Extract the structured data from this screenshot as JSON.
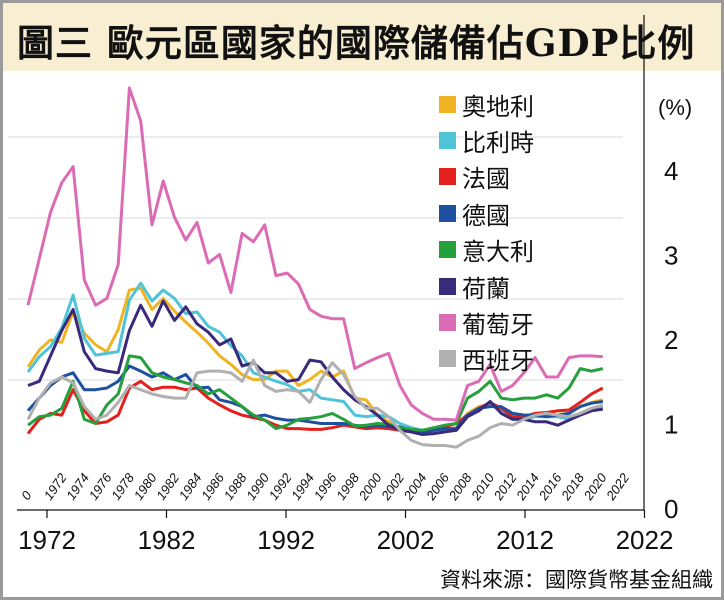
{
  "title": "圖三  歐元區國家的國際儲備佔GDP比例",
  "source": "資料來源：國際貨幣基金組織",
  "chart_data": {
    "type": "line",
    "title": "圖三  歐元區國家的國際儲備佔GDP比例",
    "xlabel": "",
    "ylabel": "(%)",
    "unit_label": "(%)",
    "ylim": [
      0,
      4.8
    ],
    "xlim": [
      1970,
      2022
    ],
    "y_ticks": [
      0,
      1,
      2,
      3,
      4
    ],
    "y_tick_labels": [
      "0",
      "1",
      "2",
      "3",
      "4"
    ],
    "x_major_ticks": [
      1972,
      1982,
      1992,
      2002,
      2012,
      2022
    ],
    "x_major_tick_labels": [
      "1972",
      "1982",
      "1992",
      "2002",
      "2012",
      "2022"
    ],
    "x_minor_tick_labels": [
      "0",
      "1972",
      "1974",
      "1976",
      "1978",
      "1980",
      "1982",
      "1984",
      "1986",
      "1988",
      "1990",
      "1992",
      "1994",
      "1996",
      "1998",
      "2000",
      "2002",
      "2004",
      "2006",
      "2008",
      "2010",
      "2012",
      "2014",
      "2016",
      "2018",
      "2020",
      "2022"
    ],
    "legend_position": "top-right",
    "grid": true,
    "x": [
      1970,
      1971,
      1972,
      1973,
      1974,
      1975,
      1976,
      1977,
      1978,
      1979,
      1980,
      1981,
      1982,
      1983,
      1984,
      1985,
      1986,
      1987,
      1988,
      1989,
      1990,
      1991,
      1992,
      1993,
      1994,
      1995,
      1996,
      1997,
      1998,
      1999,
      2000,
      2001,
      2002,
      2003,
      2004,
      2005,
      2006,
      2007,
      2008,
      2009,
      2010,
      2011,
      2012,
      2013,
      2014,
      2015,
      2016,
      2017,
      2018,
      2019,
      2020,
      2021
    ],
    "series": [
      {
        "name": "奧地利",
        "color": "#f0b323",
        "values": [
          1.67,
          1.87,
          1.99,
          1.96,
          2.32,
          2.07,
          1.93,
          1.85,
          2.11,
          2.58,
          2.6,
          2.35,
          2.48,
          2.33,
          2.2,
          2.08,
          1.95,
          1.8,
          1.7,
          1.58,
          1.52,
          1.52,
          1.62,
          1.62,
          1.45,
          1.52,
          1.62,
          1.55,
          1.62,
          1.3,
          1.28,
          1.1,
          1.02,
          0.95,
          0.9,
          0.88,
          0.9,
          0.92,
          0.95,
          1.12,
          1.2,
          1.22,
          1.18,
          1.12,
          1.1,
          1.1,
          1.12,
          1.15,
          1.15,
          1.2,
          1.25,
          1.28
        ]
      },
      {
        "name": "比利時",
        "color": "#4fc3d8",
        "values": [
          1.61,
          1.79,
          1.91,
          2.13,
          2.52,
          2.01,
          1.81,
          1.83,
          1.85,
          2.46,
          2.66,
          2.45,
          2.58,
          2.48,
          2.3,
          2.32,
          2.15,
          2.08,
          1.92,
          1.8,
          1.6,
          1.55,
          1.5,
          1.46,
          1.38,
          1.4,
          1.3,
          1.28,
          1.26,
          1.1,
          1.08,
          1.1,
          1.08,
          1.0,
          0.95,
          0.92,
          0.9,
          0.92,
          0.92,
          1.08,
          1.18,
          1.22,
          1.15,
          1.05,
          1.05,
          1.08,
          1.08,
          1.08,
          1.05,
          1.12,
          1.18,
          1.2
        ]
      },
      {
        "name": "法國",
        "color": "#e3201b",
        "values": [
          0.88,
          1.05,
          1.12,
          1.1,
          1.4,
          1.15,
          1.0,
          1.02,
          1.1,
          1.42,
          1.5,
          1.4,
          1.43,
          1.43,
          1.4,
          1.42,
          1.3,
          1.22,
          1.15,
          1.1,
          1.07,
          1.04,
          0.98,
          0.94,
          0.94,
          0.93,
          0.93,
          0.95,
          0.98,
          0.96,
          0.94,
          0.95,
          0.94,
          0.92,
          0.92,
          0.9,
          0.92,
          0.96,
          1.0,
          1.1,
          1.18,
          1.25,
          1.18,
          1.08,
          1.08,
          1.12,
          1.13,
          1.15,
          1.16,
          1.25,
          1.35,
          1.42
        ]
      },
      {
        "name": "德國",
        "color": "#1f4fa0",
        "values": [
          1.15,
          1.3,
          1.45,
          1.55,
          1.6,
          1.4,
          1.4,
          1.42,
          1.5,
          1.68,
          1.62,
          1.55,
          1.6,
          1.52,
          1.58,
          1.42,
          1.43,
          1.28,
          1.25,
          1.2,
          1.08,
          1.1,
          1.06,
          1.04,
          1.04,
          1.02,
          1.0,
          1.0,
          1.0,
          0.98,
          0.96,
          0.98,
          0.96,
          0.96,
          0.92,
          0.9,
          0.92,
          0.94,
          0.94,
          1.1,
          1.18,
          1.2,
          1.2,
          1.12,
          1.1,
          1.1,
          1.08,
          1.1,
          1.12,
          1.2,
          1.24,
          1.26
        ]
      },
      {
        "name": "意大利",
        "color": "#26a03c",
        "values": [
          0.98,
          1.08,
          1.1,
          1.18,
          1.5,
          1.05,
          1.0,
          1.22,
          1.35,
          1.8,
          1.78,
          1.6,
          1.55,
          1.52,
          1.48,
          1.45,
          1.35,
          1.4,
          1.3,
          1.2,
          1.1,
          1.04,
          0.94,
          0.98,
          1.05,
          1.06,
          1.08,
          1.12,
          1.05,
          0.97,
          0.98,
          1.0,
          0.99,
          0.95,
          0.93,
          0.92,
          0.95,
          0.98,
          1.0,
          1.3,
          1.38,
          1.5,
          1.3,
          1.28,
          1.3,
          1.3,
          1.34,
          1.3,
          1.42,
          1.65,
          1.62,
          1.65
        ]
      },
      {
        "name": "荷蘭",
        "color": "#3a2a7c",
        "values": [
          1.45,
          1.5,
          1.8,
          2.1,
          2.35,
          1.85,
          1.65,
          1.62,
          1.6,
          2.1,
          2.4,
          2.15,
          2.45,
          2.22,
          2.38,
          2.18,
          2.08,
          1.93,
          2.0,
          1.68,
          1.72,
          1.6,
          1.6,
          1.5,
          1.52,
          1.75,
          1.73,
          1.55,
          1.4,
          1.28,
          1.2,
          1.1,
          0.98,
          0.92,
          0.9,
          0.87,
          0.88,
          0.9,
          0.92,
          1.08,
          1.15,
          1.26,
          1.12,
          1.05,
          1.05,
          1.02,
          1.02,
          0.98,
          1.04,
          1.1,
          1.15,
          1.17
        ]
      },
      {
        "name": "葡萄牙",
        "color": "#dc6bb5",
        "values": [
          2.4,
          2.95,
          3.5,
          3.85,
          4.04,
          2.7,
          2.4,
          2.48,
          2.88,
          4.97,
          4.58,
          3.35,
          3.87,
          3.44,
          3.17,
          3.38,
          2.9,
          3.0,
          2.55,
          3.25,
          3.15,
          3.35,
          2.75,
          2.78,
          2.65,
          2.35,
          2.27,
          2.24,
          2.24,
          1.65,
          1.72,
          1.78,
          1.83,
          1.45,
          1.22,
          1.12,
          1.05,
          1.05,
          1.04,
          1.45,
          1.5,
          1.7,
          1.38,
          1.45,
          1.6,
          1.78,
          1.55,
          1.55,
          1.78,
          1.8,
          1.8,
          1.79
        ]
      },
      {
        "name": "西班牙",
        "color": "#b0b0b0",
        "values": [
          1.05,
          1.3,
          1.48,
          1.55,
          1.48,
          1.2,
          1.05,
          1.1,
          1.25,
          1.45,
          1.4,
          1.35,
          1.32,
          1.3,
          1.3,
          1.6,
          1.62,
          1.62,
          1.6,
          1.5,
          1.75,
          1.45,
          1.38,
          1.4,
          1.38,
          1.25,
          1.52,
          1.72,
          1.58,
          1.32,
          1.18,
          1.18,
          1.08,
          0.92,
          0.8,
          0.75,
          0.74,
          0.74,
          0.72,
          0.8,
          0.85,
          0.95,
          1.0,
          0.98,
          1.05,
          1.1,
          1.12,
          1.1,
          1.08,
          1.12,
          1.18,
          1.22
        ]
      }
    ]
  }
}
